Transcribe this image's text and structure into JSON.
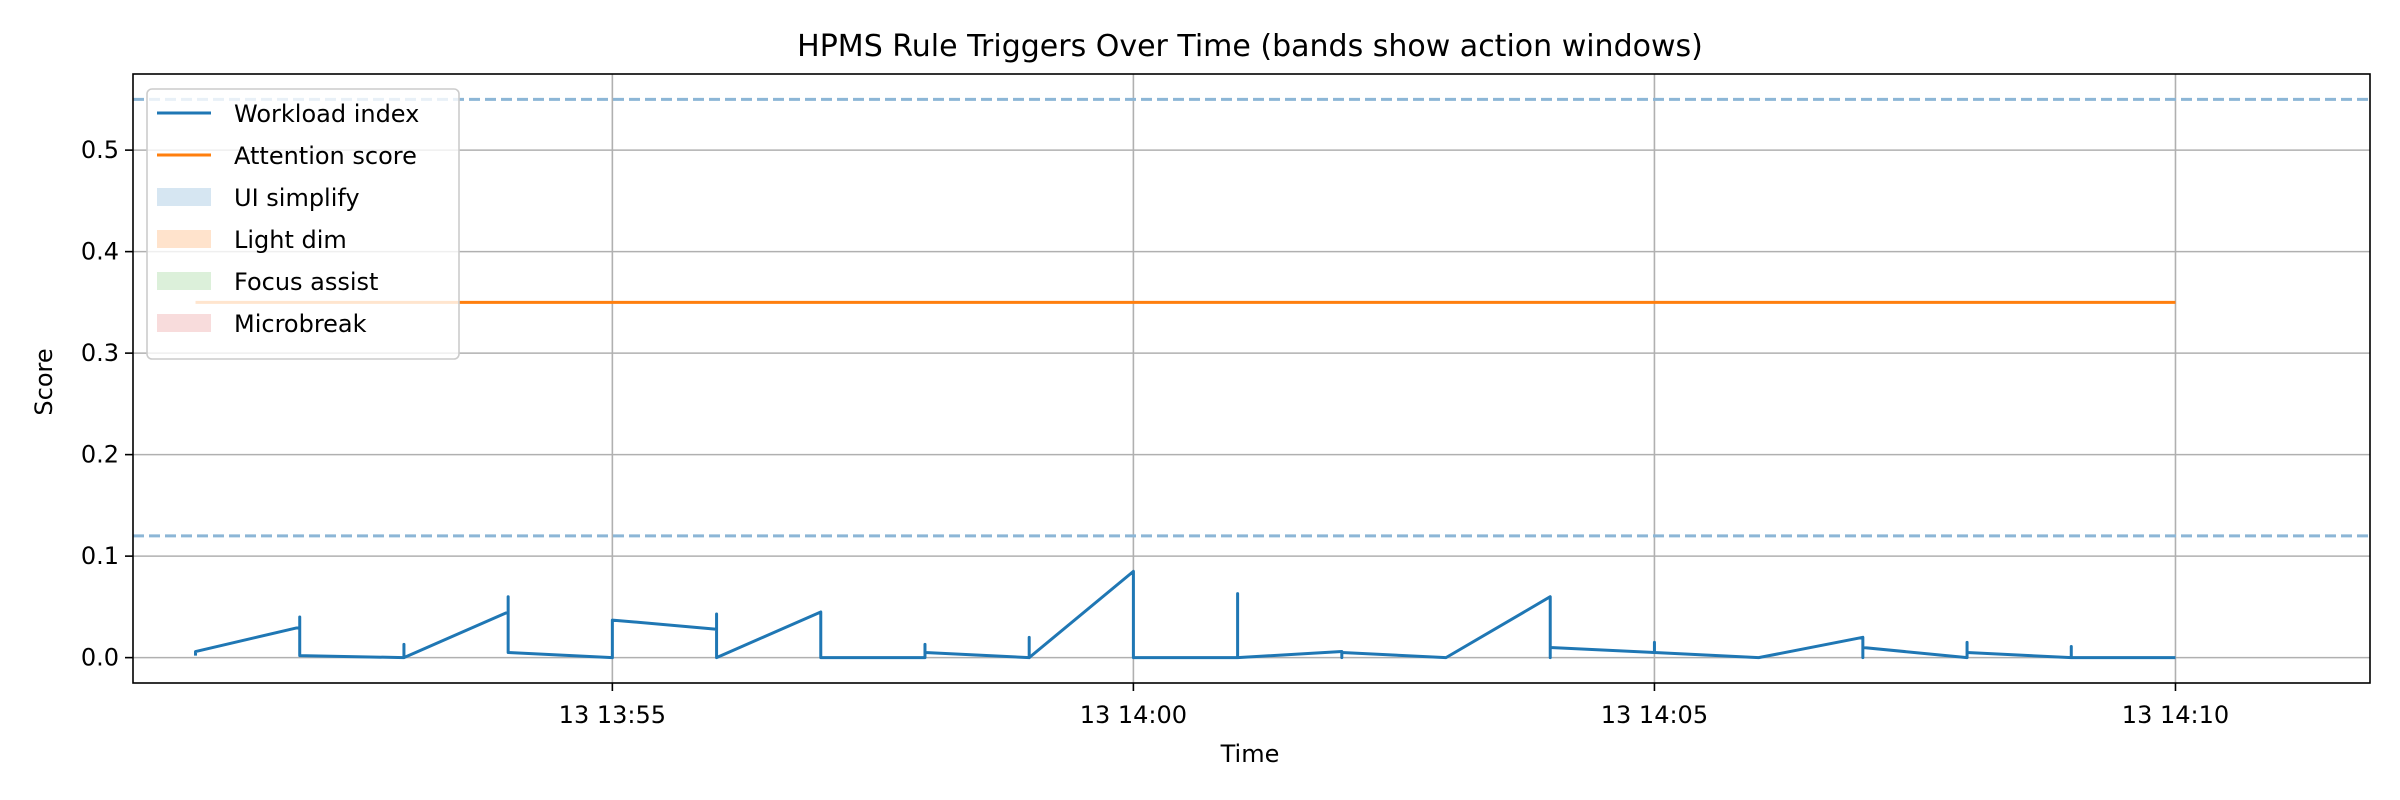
{
  "chart_data": {
    "type": "line",
    "title": "HPMS Rule Triggers Over Time (bands show action windows)",
    "xlabel": "Time",
    "ylabel": "Score",
    "grid": true,
    "legend_position": "top-left",
    "x_range": [
      "13:50:24",
      "13:11:52"
    ],
    "x_ticks": [
      {
        "time": "13:55:00",
        "label": "13 13:55"
      },
      {
        "time": "14:00:00",
        "label": "13 14:00"
      },
      {
        "time": "14:05:00",
        "label": "13 14:05"
      },
      {
        "time": "14:10:00",
        "label": "13 14:10"
      }
    ],
    "ylim": [
      -0.025,
      0.575
    ],
    "y_ticks": [
      0.0,
      0.1,
      0.2,
      0.3,
      0.4,
      0.5
    ],
    "y_tick_labels": [
      "0.0",
      "0.1",
      "0.2",
      "0.3",
      "0.4",
      "0.5"
    ],
    "thresholds": [
      {
        "value": 0.55,
        "color": "#8cb6d6",
        "style": "dashed"
      },
      {
        "value": 0.12,
        "color": "#8cb6d6",
        "style": "dashed"
      }
    ],
    "series": [
      {
        "name": "Workload index",
        "color": "#1f77b4",
        "points": [
          [
            "13:51:00",
            0.002
          ],
          [
            "13:51:00",
            0.006
          ],
          [
            "13:52:00",
            0.03
          ],
          [
            "13:52:00",
            0.04
          ],
          [
            "13:52:00",
            0.002
          ],
          [
            "13:53:00",
            0.0
          ],
          [
            "13:53:00",
            0.013
          ],
          [
            "13:53:00",
            0.0
          ],
          [
            "13:54:00",
            0.045
          ],
          [
            "13:54:00",
            0.06
          ],
          [
            "13:54:00",
            0.005
          ],
          [
            "13:55:00",
            0.0
          ],
          [
            "13:55:00",
            0.037
          ],
          [
            "13:56:00",
            0.028
          ],
          [
            "13:56:00",
            0.043
          ],
          [
            "13:56:00",
            0.0
          ],
          [
            "13:57:00",
            0.045
          ],
          [
            "13:57:00",
            0.0
          ],
          [
            "13:58:00",
            0.0
          ],
          [
            "13:58:00",
            0.013
          ],
          [
            "13:58:00",
            0.005
          ],
          [
            "13:59:00",
            0.0
          ],
          [
            "13:59:00",
            0.02
          ],
          [
            "13:59:00",
            0.0
          ],
          [
            "14:00:00",
            0.085
          ],
          [
            "14:00:00",
            0.0
          ],
          [
            "14:01:00",
            0.0
          ],
          [
            "14:01:00",
            0.063
          ],
          [
            "14:01:00",
            0.0
          ],
          [
            "14:02:00",
            0.006
          ],
          [
            "14:02:00",
            0.0
          ],
          [
            "14:02:00",
            0.005
          ],
          [
            "14:03:00",
            0.0
          ],
          [
            "14:04:00",
            0.06
          ],
          [
            "14:04:00",
            0.0
          ],
          [
            "14:04:00",
            0.01
          ],
          [
            "14:05:00",
            0.005
          ],
          [
            "14:05:00",
            0.015
          ],
          [
            "14:05:00",
            0.005
          ],
          [
            "14:06:00",
            0.0
          ],
          [
            "14:07:00",
            0.02
          ],
          [
            "14:07:00",
            0.0
          ],
          [
            "14:07:00",
            0.01
          ],
          [
            "14:08:00",
            0.0
          ],
          [
            "14:08:00",
            0.015
          ],
          [
            "14:08:00",
            0.005
          ],
          [
            "14:09:00",
            0.0
          ],
          [
            "14:09:00",
            0.011
          ],
          [
            "14:09:00",
            0.0
          ],
          [
            "14:10:00",
            0.0
          ]
        ]
      },
      {
        "name": "Attention score",
        "color": "#ff7f0e",
        "points": [
          [
            "13:51:00",
            0.35
          ],
          [
            "14:10:00",
            0.35
          ]
        ]
      }
    ],
    "bands": [
      {
        "name": "UI simplify",
        "color": "#d6e6f2"
      },
      {
        "name": "Light dim",
        "color": "#ffe3cc"
      },
      {
        "name": "Focus assist",
        "color": "#dcf0da"
      },
      {
        "name": "Microbreak",
        "color": "#f8dcdc"
      }
    ]
  }
}
